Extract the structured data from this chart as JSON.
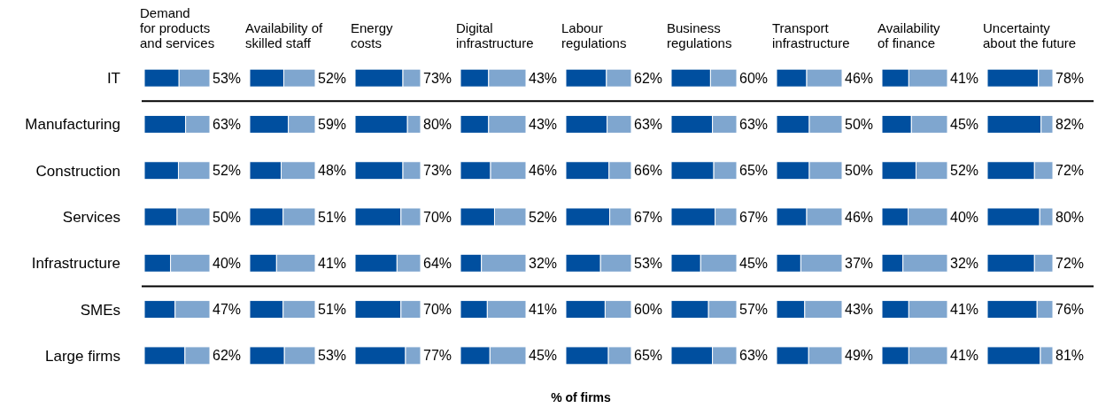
{
  "chart_data": [
    {
      "type": "bar",
      "orientation": "horizontal",
      "stacked": true,
      "title": "Demand\nfor products\nand services",
      "categories": [
        "IT",
        "Manufacturing",
        "Construction",
        "Services",
        "Infrastructure",
        "SMEs",
        "Large firms"
      ],
      "xlim": [
        0,
        100
      ],
      "tick_labels": "y",
      "series": [
        {
          "color": "#004f9f",
          "values": [
            53,
            63,
            52,
            50,
            40,
            47,
            62
          ],
          "value_labels": [
            "53%",
            "63%",
            "52%",
            "50%",
            "40%",
            "47%",
            "62%"
          ]
        },
        {
          "color": "#7fa6cf",
          "values": [
            47,
            37,
            48,
            50,
            60,
            53,
            38
          ]
        }
      ]
    },
    {
      "type": "bar",
      "orientation": "horizontal",
      "stacked": true,
      "title": "Availability of\nskilled staff",
      "categories": [
        null,
        null,
        null,
        null,
        null,
        null,
        null
      ],
      "xlim": [
        0,
        100
      ],
      "tick_labels": false,
      "series": [
        {
          "color": "#004f9f",
          "values": [
            52,
            59,
            48,
            51,
            41,
            51,
            53
          ],
          "value_labels": [
            "52%",
            "59%",
            "48%",
            "51%",
            "41%",
            "51%",
            "53%"
          ]
        },
        {
          "color": "#7fa6cf",
          "values": [
            48,
            41,
            52,
            49,
            59,
            49,
            47
          ]
        }
      ]
    },
    {
      "type": "bar",
      "orientation": "horizontal",
      "stacked": true,
      "title": "Energy\ncosts",
      "categories": [
        null,
        null,
        null,
        null,
        null,
        null,
        null
      ],
      "xlim": [
        0,
        100
      ],
      "tick_labels": false,
      "series": [
        {
          "color": "#004f9f",
          "values": [
            73,
            80,
            73,
            70,
            64,
            70,
            77
          ],
          "value_labels": [
            "73%",
            "80%",
            "73%",
            "70%",
            "64%",
            "70%",
            "77%"
          ]
        },
        {
          "color": "#7fa6cf",
          "values": [
            27,
            20,
            27,
            30,
            36,
            30,
            23
          ]
        }
      ]
    },
    {
      "type": "bar",
      "orientation": "horizontal",
      "stacked": true,
      "title": "Digital\ninfrastructure",
      "categories": [
        null,
        null,
        null,
        null,
        null,
        null,
        null
      ],
      "xlim": [
        0,
        100
      ],
      "tick_labels": false,
      "series": [
        {
          "color": "#004f9f",
          "values": [
            43,
            43,
            46,
            52,
            32,
            41,
            45
          ],
          "value_labels": [
            "43%",
            "43%",
            "46%",
            "52%",
            "32%",
            "41%",
            "45%"
          ]
        },
        {
          "color": "#7fa6cf",
          "values": [
            57,
            57,
            54,
            48,
            68,
            59,
            55
          ]
        }
      ]
    },
    {
      "type": "bar",
      "orientation": "horizontal",
      "stacked": true,
      "title": "Labour\nregulations",
      "xlabel": "% of firms",
      "categories": [
        null,
        null,
        null,
        null,
        null,
        null,
        null
      ],
      "xlim": [
        0,
        100
      ],
      "tick_labels": false,
      "series": [
        {
          "color": "#004f9f",
          "values": [
            62,
            63,
            66,
            67,
            53,
            60,
            65
          ],
          "value_labels": [
            "62%",
            "63%",
            "66%",
            "67%",
            "53%",
            "60%",
            "65%"
          ]
        },
        {
          "color": "#7fa6cf",
          "values": [
            38,
            37,
            34,
            33,
            47,
            40,
            35
          ]
        }
      ]
    },
    {
      "type": "bar",
      "orientation": "horizontal",
      "stacked": true,
      "title": "Business\nregulations",
      "categories": [
        null,
        null,
        null,
        null,
        null,
        null,
        null
      ],
      "xlim": [
        0,
        100
      ],
      "tick_labels": false,
      "series": [
        {
          "color": "#004f9f",
          "values": [
            60,
            63,
            65,
            67,
            45,
            57,
            63
          ],
          "value_labels": [
            "60%",
            "63%",
            "65%",
            "67%",
            "45%",
            "57%",
            "63%"
          ]
        },
        {
          "color": "#7fa6cf",
          "values": [
            40,
            37,
            35,
            33,
            55,
            43,
            37
          ]
        }
      ]
    },
    {
      "type": "bar",
      "orientation": "horizontal",
      "stacked": true,
      "title": "Transport\ninfrastructure",
      "categories": [
        null,
        null,
        null,
        null,
        null,
        null,
        null
      ],
      "xlim": [
        0,
        100
      ],
      "tick_labels": false,
      "series": [
        {
          "color": "#004f9f",
          "values": [
            46,
            50,
            50,
            46,
            37,
            43,
            49
          ],
          "value_labels": [
            "46%",
            "50%",
            "50%",
            "46%",
            "37%",
            "43%",
            "49%"
          ]
        },
        {
          "color": "#7fa6cf",
          "values": [
            54,
            50,
            50,
            54,
            63,
            57,
            51
          ]
        }
      ]
    },
    {
      "type": "bar",
      "orientation": "horizontal",
      "stacked": true,
      "title": "Availability\nof finance",
      "categories": [
        null,
        null,
        null,
        null,
        null,
        null,
        null
      ],
      "xlim": [
        0,
        100
      ],
      "tick_labels": false,
      "series": [
        {
          "color": "#004f9f",
          "values": [
            41,
            45,
            52,
            40,
            32,
            41,
            41
          ],
          "value_labels": [
            "41%",
            "45%",
            "52%",
            "40%",
            "32%",
            "41%",
            "41%"
          ]
        },
        {
          "color": "#7fa6cf",
          "values": [
            59,
            55,
            48,
            60,
            68,
            59,
            59
          ]
        }
      ]
    },
    {
      "type": "bar",
      "orientation": "horizontal",
      "stacked": true,
      "title": "Uncertainty\nabout the future",
      "categories": [
        null,
        null,
        null,
        null,
        null,
        null,
        null
      ],
      "xlim": [
        0,
        100
      ],
      "tick_labels": false,
      "series": [
        {
          "color": "#004f9f",
          "values": [
            78,
            82,
            72,
            80,
            72,
            76,
            81
          ],
          "value_labels": [
            "78%",
            "82%",
            "72%",
            "80%",
            "72%",
            "76%",
            "81%"
          ]
        },
        {
          "color": "#7fa6cf",
          "values": [
            22,
            18,
            28,
            20,
            28,
            24,
            19
          ]
        }
      ]
    }
  ]
}
